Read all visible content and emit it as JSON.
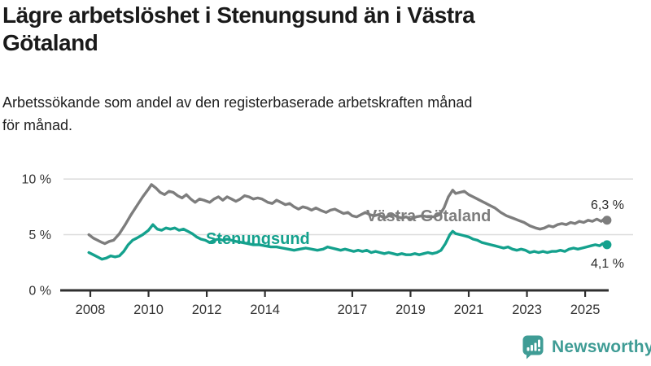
{
  "header": {
    "title_line1": "Lägre arbetslöshet i Stenungsund än i Västra",
    "title_line2": "Götaland",
    "subtitle_line1": "Arbetssökande som andel av den registerbaserade arbetskraften månad",
    "subtitle_line2": "för månad."
  },
  "chart_data": {
    "type": "line",
    "title": "Lägre arbetslöshet i Stenungsund än i Västra Götaland",
    "subtitle": "Arbetssökande som andel av den registerbaserade arbetskraften månad för månad.",
    "unit": "%",
    "xlim": [
      2007.9,
      2026.2
    ],
    "ylim": [
      0,
      10.8
    ],
    "grid": "horizontal-only",
    "legend_position": "inline-labels",
    "y_ticks": [
      {
        "label": "0 %",
        "value": 0
      },
      {
        "label": "5 %",
        "value": 5
      },
      {
        "label": "10 %",
        "value": 10
      }
    ],
    "x_ticks": [
      {
        "label": "2008",
        "year": 2008
      },
      {
        "label": "2010",
        "year": 2010
      },
      {
        "label": "2012",
        "year": 2012
      },
      {
        "label": "2014",
        "year": 2014
      },
      {
        "label": "2017",
        "year": 2017
      },
      {
        "label": "2019",
        "year": 2019
      },
      {
        "label": "2021",
        "year": 2021
      },
      {
        "label": "2023",
        "year": 2023
      },
      {
        "label": "2025",
        "year": 2025
      }
    ],
    "series": [
      {
        "name": "Västra Götaland",
        "color": "#7d7d7d",
        "end_label": "6,3 %",
        "end_value": 6.3,
        "points": [
          [
            2007.95,
            5.0
          ],
          [
            2008.1,
            4.7
          ],
          [
            2008.25,
            4.5
          ],
          [
            2008.4,
            4.3
          ],
          [
            2008.5,
            4.2
          ],
          [
            2008.65,
            4.4
          ],
          [
            2008.8,
            4.5
          ],
          [
            2009.0,
            5.1
          ],
          [
            2009.2,
            5.9
          ],
          [
            2009.4,
            6.8
          ],
          [
            2009.6,
            7.6
          ],
          [
            2009.8,
            8.4
          ],
          [
            2010.0,
            9.1
          ],
          [
            2010.1,
            9.5
          ],
          [
            2010.25,
            9.2
          ],
          [
            2010.4,
            8.8
          ],
          [
            2010.55,
            8.6
          ],
          [
            2010.7,
            8.9
          ],
          [
            2010.85,
            8.8
          ],
          [
            2011.0,
            8.5
          ],
          [
            2011.15,
            8.3
          ],
          [
            2011.3,
            8.6
          ],
          [
            2011.45,
            8.2
          ],
          [
            2011.6,
            7.9
          ],
          [
            2011.75,
            8.2
          ],
          [
            2011.9,
            8.1
          ],
          [
            2012.1,
            7.9
          ],
          [
            2012.25,
            8.2
          ],
          [
            2012.4,
            8.4
          ],
          [
            2012.55,
            8.1
          ],
          [
            2012.7,
            8.4
          ],
          [
            2012.85,
            8.2
          ],
          [
            2013.0,
            8.0
          ],
          [
            2013.15,
            8.2
          ],
          [
            2013.3,
            8.5
          ],
          [
            2013.45,
            8.4
          ],
          [
            2013.6,
            8.2
          ],
          [
            2013.75,
            8.3
          ],
          [
            2013.9,
            8.2
          ],
          [
            2014.1,
            7.9
          ],
          [
            2014.25,
            7.8
          ],
          [
            2014.4,
            8.1
          ],
          [
            2014.55,
            7.9
          ],
          [
            2014.7,
            7.7
          ],
          [
            2014.85,
            7.8
          ],
          [
            2015.0,
            7.5
          ],
          [
            2015.15,
            7.3
          ],
          [
            2015.3,
            7.5
          ],
          [
            2015.45,
            7.4
          ],
          [
            2015.6,
            7.2
          ],
          [
            2015.75,
            7.4
          ],
          [
            2015.9,
            7.2
          ],
          [
            2016.1,
            7.0
          ],
          [
            2016.25,
            7.2
          ],
          [
            2016.4,
            7.3
          ],
          [
            2016.55,
            7.1
          ],
          [
            2016.7,
            6.9
          ],
          [
            2016.85,
            7.0
          ],
          [
            2017.0,
            6.7
          ],
          [
            2017.15,
            6.6
          ],
          [
            2017.3,
            6.8
          ],
          [
            2017.45,
            7.0
          ],
          [
            2017.6,
            6.8
          ],
          [
            2017.75,
            6.7
          ],
          [
            2017.9,
            6.8
          ],
          [
            2018.1,
            6.5
          ],
          [
            2018.25,
            6.7
          ],
          [
            2018.4,
            6.8
          ],
          [
            2018.55,
            6.6
          ],
          [
            2018.7,
            6.5
          ],
          [
            2018.85,
            6.6
          ],
          [
            2019.0,
            6.4
          ],
          [
            2019.2,
            6.6
          ],
          [
            2019.4,
            6.7
          ],
          [
            2019.6,
            6.6
          ],
          [
            2019.8,
            6.6
          ],
          [
            2020.0,
            6.8
          ],
          [
            2020.15,
            7.4
          ],
          [
            2020.3,
            8.4
          ],
          [
            2020.45,
            9.0
          ],
          [
            2020.55,
            8.7
          ],
          [
            2020.7,
            8.8
          ],
          [
            2020.85,
            8.9
          ],
          [
            2021.0,
            8.6
          ],
          [
            2021.15,
            8.4
          ],
          [
            2021.3,
            8.2
          ],
          [
            2021.45,
            8.0
          ],
          [
            2021.6,
            7.8
          ],
          [
            2021.75,
            7.6
          ],
          [
            2021.9,
            7.4
          ],
          [
            2022.1,
            7.0
          ],
          [
            2022.3,
            6.7
          ],
          [
            2022.5,
            6.5
          ],
          [
            2022.7,
            6.3
          ],
          [
            2022.9,
            6.1
          ],
          [
            2023.1,
            5.8
          ],
          [
            2023.3,
            5.6
          ],
          [
            2023.45,
            5.5
          ],
          [
            2023.6,
            5.6
          ],
          [
            2023.75,
            5.8
          ],
          [
            2023.9,
            5.7
          ],
          [
            2024.05,
            5.9
          ],
          [
            2024.2,
            6.0
          ],
          [
            2024.35,
            5.9
          ],
          [
            2024.5,
            6.1
          ],
          [
            2024.65,
            6.0
          ],
          [
            2024.8,
            6.2
          ],
          [
            2024.95,
            6.1
          ],
          [
            2025.1,
            6.3
          ],
          [
            2025.25,
            6.2
          ],
          [
            2025.4,
            6.4
          ],
          [
            2025.55,
            6.2
          ],
          [
            2025.65,
            6.4
          ],
          [
            2025.75,
            6.3
          ]
        ]
      },
      {
        "name": "Stenungsund",
        "color": "#14a18d",
        "end_label": "4,1 %",
        "end_value": 4.1,
        "points": [
          [
            2007.95,
            3.4
          ],
          [
            2008.1,
            3.2
          ],
          [
            2008.25,
            3.0
          ],
          [
            2008.4,
            2.8
          ],
          [
            2008.55,
            2.9
          ],
          [
            2008.7,
            3.1
          ],
          [
            2008.85,
            3.0
          ],
          [
            2009.0,
            3.1
          ],
          [
            2009.15,
            3.5
          ],
          [
            2009.3,
            4.1
          ],
          [
            2009.45,
            4.5
          ],
          [
            2009.6,
            4.7
          ],
          [
            2009.8,
            5.0
          ],
          [
            2010.0,
            5.4
          ],
          [
            2010.15,
            5.9
          ],
          [
            2010.3,
            5.5
          ],
          [
            2010.45,
            5.4
          ],
          [
            2010.6,
            5.6
          ],
          [
            2010.75,
            5.5
          ],
          [
            2010.9,
            5.6
          ],
          [
            2011.05,
            5.4
          ],
          [
            2011.2,
            5.5
          ],
          [
            2011.35,
            5.3
          ],
          [
            2011.5,
            5.1
          ],
          [
            2011.65,
            4.8
          ],
          [
            2011.8,
            4.6
          ],
          [
            2011.95,
            4.5
          ],
          [
            2012.1,
            4.3
          ],
          [
            2012.25,
            4.5
          ],
          [
            2012.4,
            4.6
          ],
          [
            2012.55,
            4.5
          ],
          [
            2012.7,
            4.6
          ],
          [
            2012.85,
            4.5
          ],
          [
            2013.0,
            4.4
          ],
          [
            2013.2,
            4.3
          ],
          [
            2013.4,
            4.2
          ],
          [
            2013.6,
            4.1
          ],
          [
            2013.8,
            4.1
          ],
          [
            2014.0,
            4.0
          ],
          [
            2014.2,
            3.9
          ],
          [
            2014.4,
            3.9
          ],
          [
            2014.6,
            3.8
          ],
          [
            2014.8,
            3.7
          ],
          [
            2015.0,
            3.6
          ],
          [
            2015.2,
            3.7
          ],
          [
            2015.4,
            3.8
          ],
          [
            2015.6,
            3.7
          ],
          [
            2015.8,
            3.6
          ],
          [
            2016.0,
            3.7
          ],
          [
            2016.15,
            3.9
          ],
          [
            2016.3,
            3.8
          ],
          [
            2016.45,
            3.7
          ],
          [
            2016.6,
            3.6
          ],
          [
            2016.75,
            3.7
          ],
          [
            2016.9,
            3.6
          ],
          [
            2017.05,
            3.5
          ],
          [
            2017.2,
            3.6
          ],
          [
            2017.35,
            3.5
          ],
          [
            2017.5,
            3.6
          ],
          [
            2017.65,
            3.4
          ],
          [
            2017.8,
            3.5
          ],
          [
            2017.95,
            3.4
          ],
          [
            2018.1,
            3.3
          ],
          [
            2018.25,
            3.4
          ],
          [
            2018.4,
            3.3
          ],
          [
            2018.55,
            3.2
          ],
          [
            2018.7,
            3.3
          ],
          [
            2018.85,
            3.2
          ],
          [
            2019.0,
            3.2
          ],
          [
            2019.15,
            3.3
          ],
          [
            2019.3,
            3.2
          ],
          [
            2019.45,
            3.3
          ],
          [
            2019.6,
            3.4
          ],
          [
            2019.75,
            3.3
          ],
          [
            2019.9,
            3.4
          ],
          [
            2020.05,
            3.6
          ],
          [
            2020.2,
            4.2
          ],
          [
            2020.35,
            5.0
          ],
          [
            2020.45,
            5.3
          ],
          [
            2020.55,
            5.1
          ],
          [
            2020.7,
            5.0
          ],
          [
            2020.85,
            4.9
          ],
          [
            2021.0,
            4.8
          ],
          [
            2021.15,
            4.6
          ],
          [
            2021.3,
            4.5
          ],
          [
            2021.45,
            4.3
          ],
          [
            2021.6,
            4.2
          ],
          [
            2021.75,
            4.1
          ],
          [
            2021.9,
            4.0
          ],
          [
            2022.05,
            3.9
          ],
          [
            2022.2,
            3.8
          ],
          [
            2022.35,
            3.9
          ],
          [
            2022.5,
            3.7
          ],
          [
            2022.65,
            3.6
          ],
          [
            2022.8,
            3.7
          ],
          [
            2022.95,
            3.6
          ],
          [
            2023.1,
            3.4
          ],
          [
            2023.25,
            3.5
          ],
          [
            2023.4,
            3.4
          ],
          [
            2023.55,
            3.5
          ],
          [
            2023.7,
            3.4
          ],
          [
            2023.85,
            3.5
          ],
          [
            2024.0,
            3.5
          ],
          [
            2024.15,
            3.6
          ],
          [
            2024.3,
            3.5
          ],
          [
            2024.45,
            3.7
          ],
          [
            2024.6,
            3.8
          ],
          [
            2024.75,
            3.7
          ],
          [
            2024.9,
            3.8
          ],
          [
            2025.05,
            3.9
          ],
          [
            2025.2,
            4.0
          ],
          [
            2025.35,
            4.1
          ],
          [
            2025.5,
            4.0
          ],
          [
            2025.6,
            4.2
          ],
          [
            2025.75,
            4.1
          ]
        ]
      }
    ]
  },
  "footer": {
    "brand": "Newsworthy",
    "brand_color": "#3f9c95"
  }
}
